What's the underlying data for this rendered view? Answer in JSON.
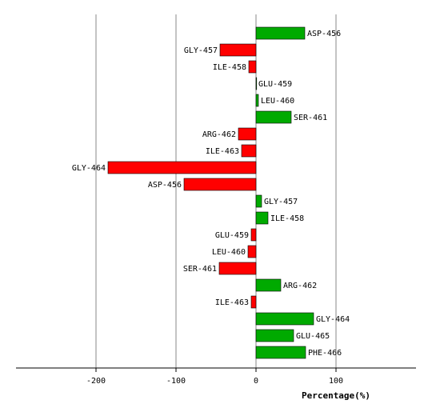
{
  "chart_data": {
    "type": "bar",
    "orientation": "horizontal",
    "xlabel": "Percentage(%)",
    "xlim": [
      -300,
      200
    ],
    "xticks": [
      -200,
      -100,
      0,
      100
    ],
    "grid": true,
    "positive_color": "#00aa00",
    "negative_color": "#ff0000",
    "categories": [
      "ASP-456",
      "GLY-457",
      "ILE-458",
      "GLU-459",
      "LEU-460",
      "SER-461",
      "ARG-462",
      "ILE-463",
      "GLY-464",
      "ASP-456",
      "GLY-457",
      "ILE-458",
      "GLU-459",
      "LEU-460",
      "SER-461",
      "ARG-462",
      "ILE-463",
      "GLY-464",
      "GLU-465",
      "PHE-466"
    ],
    "values": [
      61,
      -45,
      -9,
      0,
      3,
      44,
      -22,
      -18,
      -185,
      -90,
      7,
      15,
      -6,
      -10,
      -46,
      31,
      -6,
      72,
      47,
      62
    ]
  }
}
